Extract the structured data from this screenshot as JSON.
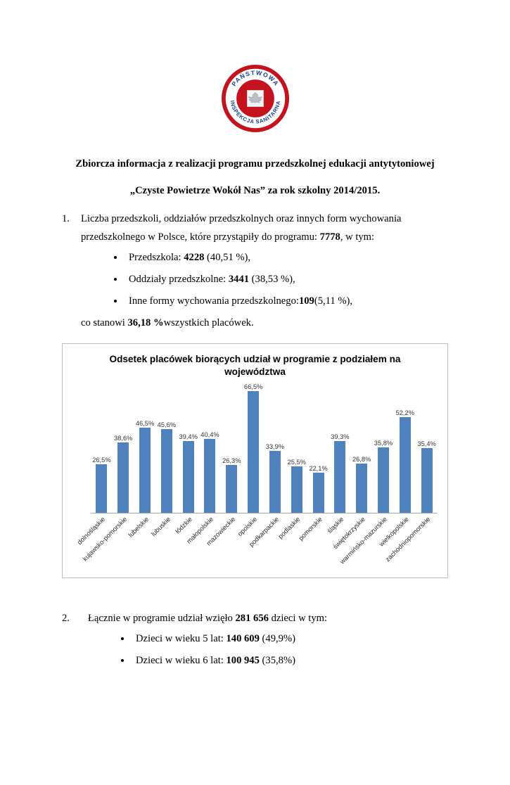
{
  "logo": {
    "top_text": "PAŃSTWOWA",
    "bottom_text": "INSPEKCJA SANITARNA",
    "ring_color": "#c4121f",
    "text_color": "#15418c"
  },
  "title": {
    "line1": "Zbiorcza informacja z realizacji programu przedszkolnej edukacji antytytoniowej",
    "line2": "„Czyste Powietrze Wokół Nas” za rok szkolny 2014/2015."
  },
  "item1": {
    "number": "1.",
    "intro_pre": "Liczba przedszkoli, oddziałów przedszkolnych oraz innych form wychowania przedszkolnego w Polsce, które przystąpiły do programu: ",
    "total": "7778",
    "intro_post": ", w tym:",
    "bullets": [
      {
        "pre": "Przedszkola: ",
        "bold": "4228",
        "post": " (40,51 %),"
      },
      {
        "pre": "Oddziały przedszkolne: ",
        "bold": "3441",
        "post": " (38,53 %),"
      },
      {
        "pre": "Inne formy wychowania przedszkolnego:",
        "bold": "109",
        "post": "(5,11 %),"
      }
    ],
    "outro_pre": "co stanowi ",
    "outro_bold": "36,18 %",
    "outro_post": "wszystkich placówek."
  },
  "chart_data": {
    "type": "bar",
    "title": "Odsetek placówek biorących udział w programie z podziałem na województwa",
    "categories": [
      "dolnośląskie",
      "kujawsko-pomorskie",
      "lubelskie",
      "lubuskie",
      "łódzkie",
      "małopolskie",
      "mazowieckie",
      "opolskie",
      "podkarpackie",
      "podlaskie",
      "pomorskie",
      "śląskie",
      "świętokrzyskie",
      "warmińsko-mazurskie",
      "wielkopolskie",
      "zachodniopomorskie"
    ],
    "values": [
      26.5,
      38.6,
      46.5,
      45.6,
      39.4,
      40.4,
      26.3,
      66.5,
      33.9,
      25.5,
      22.1,
      39.3,
      26.8,
      35.8,
      52.2,
      35.4
    ],
    "value_labels": [
      "26,5%",
      "38,6%",
      "46,5%",
      "45,6%",
      "39,4%",
      "40,4%",
      "26,3%",
      "66,5%",
      "33,9%",
      "25,5%",
      "22,1%",
      "39,3%",
      "26,8%",
      "35,8%",
      "52,2%",
      "35,4%"
    ],
    "bar_color": "#4F81BD",
    "ylim": [
      0,
      70
    ],
    "grid": false,
    "legend": "none",
    "xlabel": "",
    "ylabel": ""
  },
  "item2": {
    "number": "2.",
    "intro_pre": "Łącznie w programie udział wzięło ",
    "intro_bold": "281 656",
    "intro_post": " dzieci w tym:",
    "bullets": [
      {
        "pre": "Dzieci w wieku 5 lat: ",
        "bold": "140 609",
        "post": " (49,9%)"
      },
      {
        "pre": "Dzieci w wieku 6 lat: ",
        "bold": "100 945",
        "post": " (35,8%)"
      }
    ]
  }
}
